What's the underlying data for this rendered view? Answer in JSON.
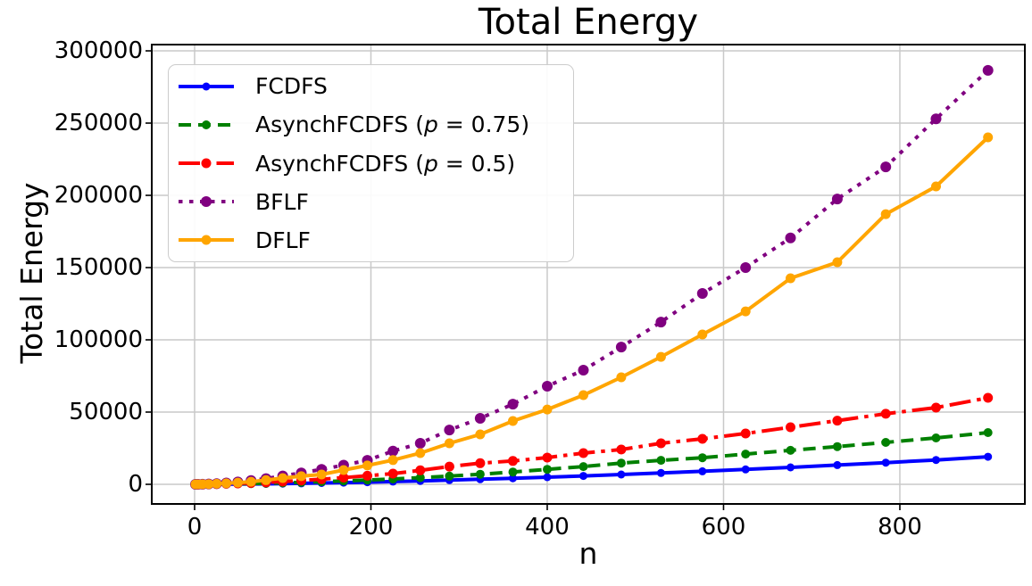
{
  "chart_data": {
    "type": "line",
    "title": "Total Energy",
    "xlabel": "n",
    "ylabel": "Total Energy",
    "x": [
      1,
      4,
      9,
      16,
      25,
      36,
      49,
      64,
      81,
      100,
      121,
      144,
      169,
      196,
      225,
      256,
      289,
      324,
      361,
      400,
      441,
      484,
      529,
      576,
      625,
      676,
      729,
      784,
      841,
      900
    ],
    "series": [
      {
        "name": "FCDFS",
        "label_pre": "FCDFS",
        "label_p": "",
        "label_post": "",
        "color": "#0000ff",
        "linestyle": "solid",
        "marker": "circle",
        "marker_radius": 4.5,
        "values": [
          0,
          2,
          8,
          22,
          47,
          86,
          145,
          230,
          340,
          490,
          670,
          900,
          1175,
          1510,
          1900,
          2360,
          2880,
          3490,
          4170,
          4950,
          5810,
          6780,
          7850,
          9030,
          10330,
          11760,
          13310,
          15000,
          16840,
          19100
        ]
      },
      {
        "name": "AsynchFCDFS-p075",
        "label_pre": "AsynchFCDFS (",
        "label_p": "p",
        "label_post": " = 0.75)",
        "color": "#008000",
        "linestyle": "dashed",
        "marker": "circle",
        "marker_radius": 5,
        "values": [
          1,
          6,
          20,
          50,
          105,
          190,
          310,
          480,
          700,
          980,
          1340,
          1780,
          2320,
          2960,
          3720,
          4600,
          5700,
          7000,
          8500,
          10400,
          12300,
          14700,
          16600,
          18400,
          20900,
          23500,
          26100,
          29000,
          32100,
          35800
        ]
      },
      {
        "name": "AsynchFCDFS-p05",
        "label_pre": "AsynchFCDFS (",
        "label_p": "p",
        "label_post": " = 0.5)",
        "color": "#ff0000",
        "linestyle": "dashdot",
        "marker": "circle",
        "marker_radius": 5.5,
        "values": [
          2,
          12,
          42,
          100,
          205,
          365,
          600,
          930,
          1370,
          1930,
          2650,
          3540,
          4620,
          5900,
          7400,
          9700,
          12300,
          14600,
          16200,
          18500,
          21600,
          24100,
          28400,
          31500,
          35200,
          39500,
          44100,
          48800,
          53100,
          59900
        ]
      },
      {
        "name": "BFLF",
        "label_pre": "BFLF",
        "label_p": "",
        "label_post": "",
        "color": "#800080",
        "linestyle": "dotted",
        "marker": "circle",
        "marker_radius": 6,
        "values": [
          2,
          19,
          80,
          225,
          495,
          950,
          1630,
          2630,
          3980,
          5800,
          7900,
          10400,
          13300,
          16600,
          23000,
          28400,
          37600,
          45700,
          55500,
          67900,
          79000,
          95000,
          112300,
          132100,
          150000,
          170500,
          197500,
          219700,
          253000,
          286500
        ]
      },
      {
        "name": "DFLF",
        "label_pre": "DFLF",
        "label_p": "",
        "label_post": "",
        "color": "#ffa500",
        "linestyle": "solid",
        "marker": "circle",
        "marker_radius": 5.5,
        "values": [
          2,
          15,
          60,
          170,
          370,
          700,
          1150,
          1800,
          2900,
          4300,
          5600,
          6800,
          9900,
          13000,
          16800,
          21600,
          28400,
          34600,
          43800,
          51800,
          61700,
          74100,
          88200,
          103700,
          119700,
          142600,
          153700,
          187000,
          206200,
          240100
        ]
      }
    ],
    "xticks": [
      0,
      200,
      400,
      600,
      800
    ],
    "yticks": [
      0,
      50000,
      100000,
      150000,
      200000,
      250000,
      300000
    ],
    "xlim": [
      -48.6,
      941.8
    ],
    "ylim": [
      -13580,
      304330
    ],
    "grid": true,
    "legend_position": "upper left"
  }
}
